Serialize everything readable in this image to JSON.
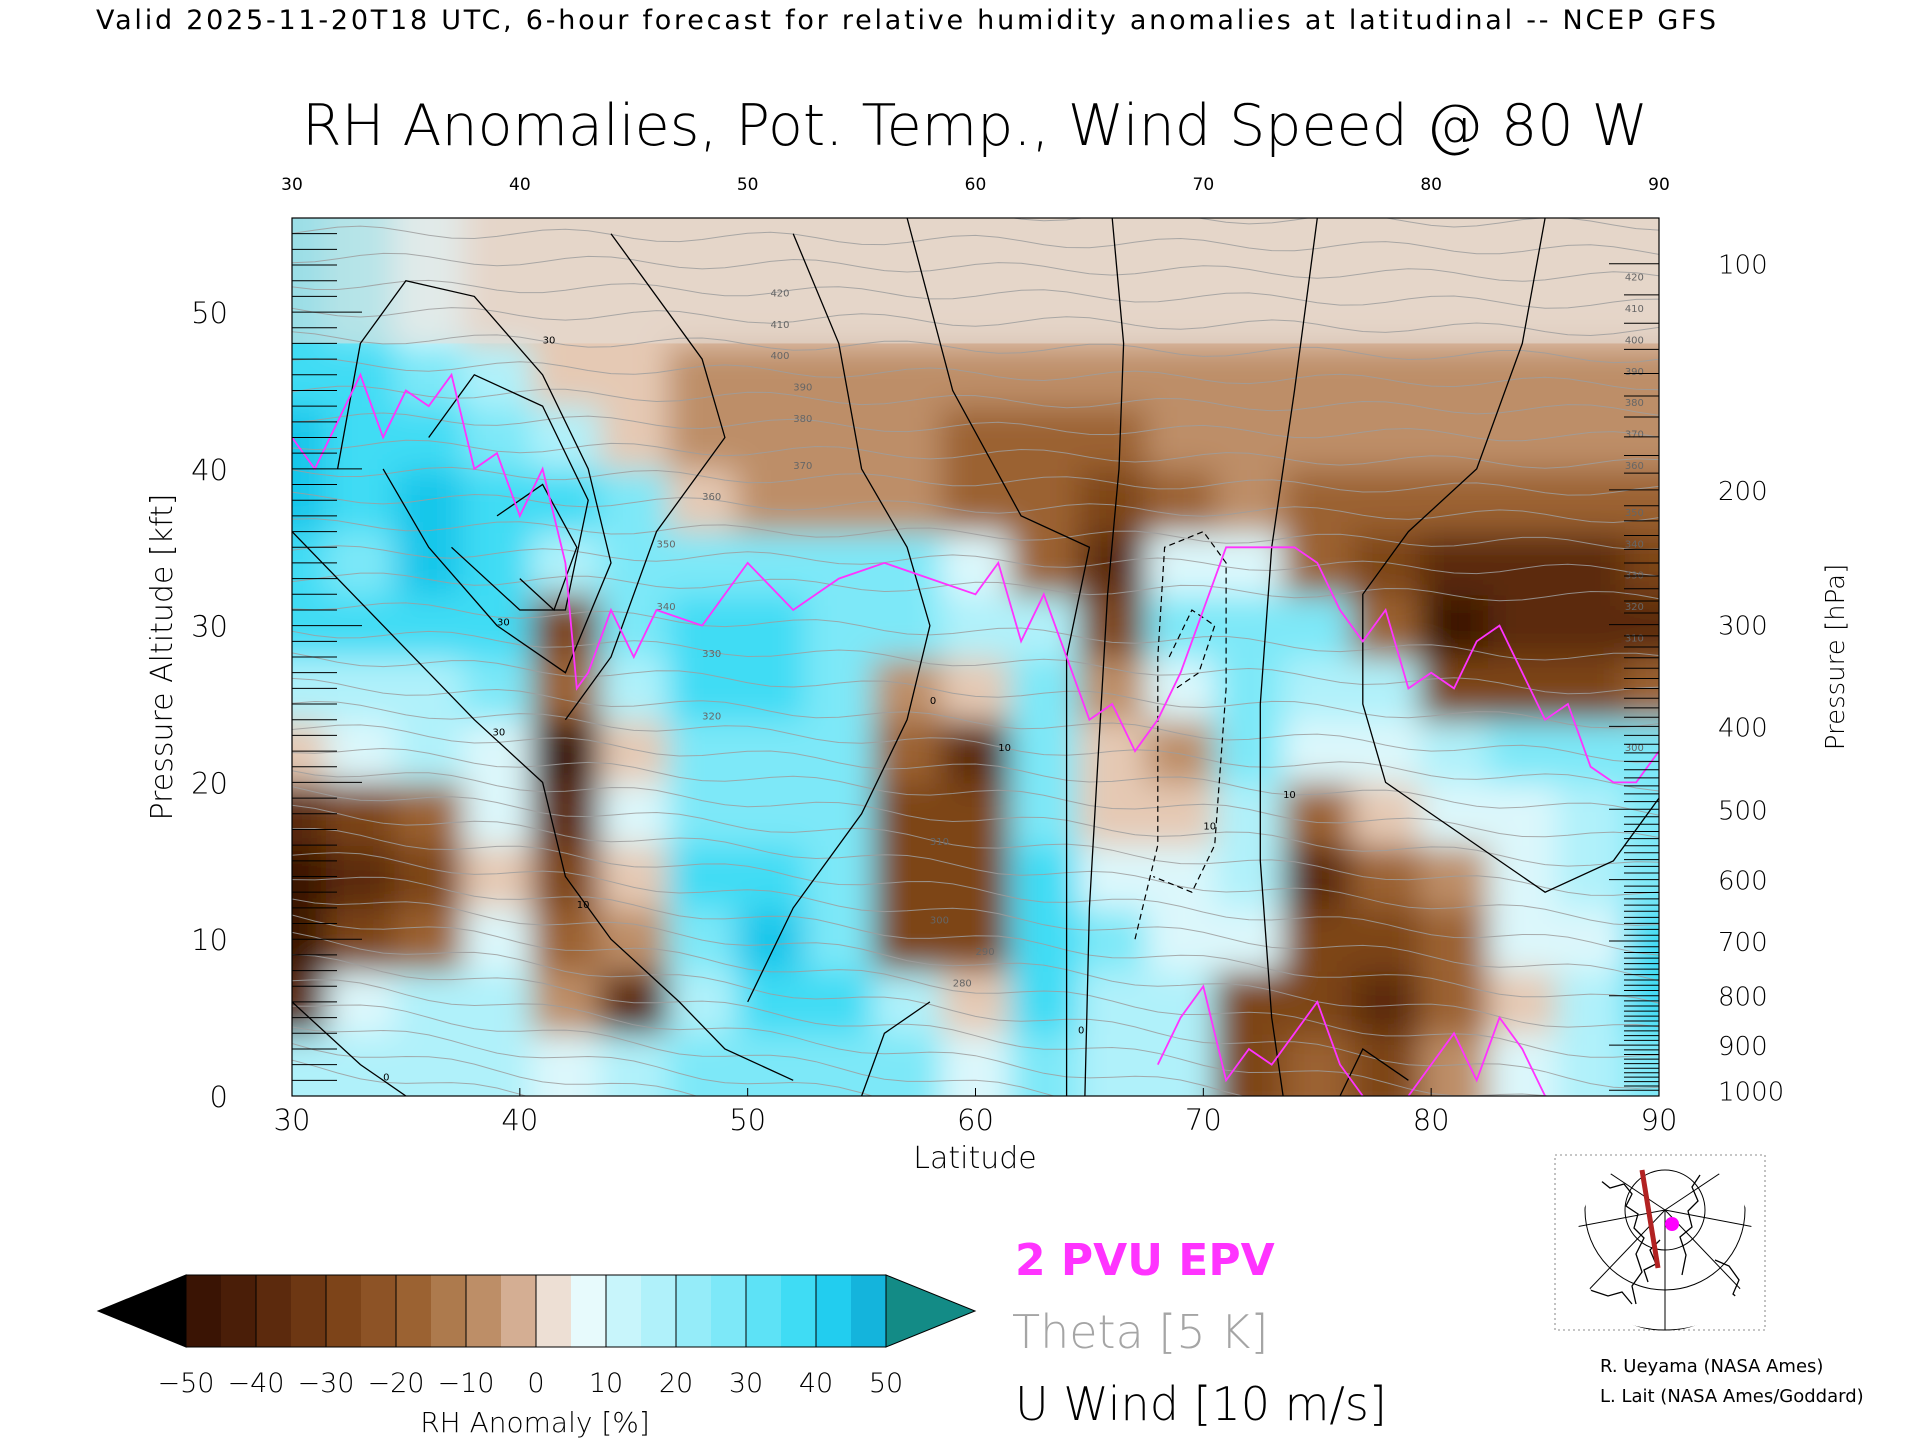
{
  "header": {
    "valid_line": "Valid 2025-11-20T18 UTC, 6-hour forecast for relative humidity anomalies at latitudinal -- NCEP GFS",
    "title": "RH Anomalies, Pot. Temp., Wind Speed @ 80 W"
  },
  "chart_data": {
    "type": "heatmap",
    "title": "RH Anomalies, Pot. Temp., Wind Speed @ 80 W",
    "xlabel": "Latitude",
    "ylabel": "Pressure Altitude [kft]",
    "ylabel_right": "Pressure [hPa]",
    "xlim": [
      30,
      90
    ],
    "ylim": [
      0,
      56
    ],
    "x_ticks": [
      30,
      40,
      50,
      60,
      70,
      80,
      90
    ],
    "y_ticks": [
      0,
      10,
      20,
      30,
      40,
      50
    ],
    "pressure_ticks": [
      {
        "hPa": 100,
        "label": "100"
      },
      {
        "hPa": 200,
        "label": "200"
      },
      {
        "hPa": 300,
        "label": "300"
      },
      {
        "hPa": 400,
        "label": "400"
      },
      {
        "hPa": 500,
        "label": "500"
      },
      {
        "hPa": 600,
        "label": "600"
      },
      {
        "hPa": 700,
        "label": "700"
      },
      {
        "hPa": 800,
        "label": "800"
      },
      {
        "hPa": 900,
        "label": "900"
      },
      {
        "hPa": 1000,
        "label": "1000"
      }
    ],
    "rh_anomaly_field": {
      "lats": [
        30,
        33,
        36,
        39,
        42,
        45,
        48,
        51,
        54,
        57,
        60,
        63,
        66,
        69,
        72,
        75,
        78,
        81,
        84,
        87,
        90
      ],
      "levels_kft": [
        2,
        6,
        10,
        14,
        18,
        22,
        26,
        30,
        34,
        38,
        42,
        46,
        50
      ],
      "values": [
        [
          10,
          15,
          10,
          15,
          5,
          10,
          20,
          25,
          25,
          20,
          5,
          25,
          10,
          10,
          -30,
          -20,
          -25,
          -10,
          0,
          10,
          25
        ],
        [
          -35,
          5,
          10,
          10,
          -10,
          -35,
          15,
          30,
          30,
          15,
          -5,
          30,
          10,
          15,
          -25,
          -25,
          -35,
          -15,
          -5,
          10,
          30
        ],
        [
          -45,
          -30,
          -15,
          0,
          -20,
          -10,
          25,
          40,
          25,
          -25,
          -25,
          35,
          20,
          5,
          5,
          -30,
          -25,
          -15,
          0,
          5,
          30
        ],
        [
          -45,
          -35,
          -25,
          -5,
          -30,
          -5,
          30,
          35,
          25,
          -30,
          -25,
          30,
          0,
          5,
          10,
          -35,
          -15,
          -10,
          5,
          15,
          25
        ],
        [
          -40,
          -30,
          -15,
          0,
          -35,
          0,
          25,
          25,
          25,
          -30,
          -25,
          25,
          -5,
          -5,
          15,
          -20,
          -5,
          0,
          5,
          15,
          20
        ],
        [
          -5,
          5,
          10,
          5,
          -45,
          -5,
          20,
          25,
          25,
          -20,
          -35,
          25,
          -5,
          -10,
          20,
          5,
          5,
          10,
          20,
          20,
          20
        ],
        [
          15,
          15,
          10,
          25,
          -20,
          10,
          30,
          30,
          25,
          -10,
          -5,
          20,
          -10,
          5,
          25,
          15,
          10,
          -25,
          -30,
          -25,
          -15
        ],
        [
          30,
          30,
          30,
          35,
          -25,
          25,
          30,
          30,
          25,
          25,
          10,
          10,
          -30,
          20,
          25,
          20,
          -20,
          -45,
          -40,
          -35,
          -35
        ],
        [
          35,
          25,
          40,
          35,
          10,
          25,
          25,
          25,
          25,
          25,
          5,
          -15,
          -40,
          5,
          5,
          -15,
          -25,
          -40,
          -35,
          -35,
          -30
        ],
        [
          40,
          30,
          45,
          35,
          30,
          20,
          -5,
          -10,
          -10,
          -10,
          -15,
          -20,
          -25,
          -15,
          -10,
          -15,
          -20,
          -20,
          -20,
          -20,
          -20
        ],
        [
          40,
          35,
          35,
          25,
          15,
          -5,
          -10,
          -10,
          -10,
          -10,
          -15,
          -15,
          -15,
          -10,
          -10,
          -10,
          -10,
          -10,
          -10,
          -10,
          -10
        ],
        [
          35,
          35,
          20,
          10,
          -5,
          -5,
          -10,
          -10,
          -10,
          -10,
          -10,
          -10,
          -10,
          -10,
          -10,
          -10,
          -10,
          -10,
          -10,
          -10,
          -10
        ],
        [
          30,
          20,
          5,
          -5,
          -5,
          -5,
          -5,
          -5,
          -5,
          -5,
          -5,
          -5,
          -5,
          -5,
          -5,
          -5,
          -5,
          -5,
          -5,
          -5,
          -5
        ]
      ]
    },
    "epv_2pvu_line": {
      "label": "2 PVU EPV",
      "color": "#ff33ff",
      "points": [
        [
          30,
          42
        ],
        [
          31,
          40
        ],
        [
          32,
          43
        ],
        [
          33,
          46
        ],
        [
          34,
          42
        ],
        [
          35,
          45
        ],
        [
          36,
          44
        ],
        [
          37,
          46
        ],
        [
          38,
          40
        ],
        [
          39,
          41
        ],
        [
          40,
          37
        ],
        [
          41,
          40
        ],
        [
          42,
          34
        ],
        [
          42.5,
          26
        ],
        [
          43,
          27
        ],
        [
          44,
          31
        ],
        [
          45,
          28
        ],
        [
          46,
          31
        ],
        [
          48,
          30
        ],
        [
          50,
          34
        ],
        [
          52,
          31
        ],
        [
          54,
          33
        ],
        [
          56,
          34
        ],
        [
          58,
          33
        ],
        [
          60,
          32
        ],
        [
          61,
          34
        ],
        [
          62,
          29
        ],
        [
          63,
          32
        ],
        [
          64,
          28
        ],
        [
          65,
          24
        ],
        [
          66,
          25
        ],
        [
          67,
          22
        ],
        [
          68,
          24
        ],
        [
          69,
          27
        ],
        [
          70,
          31
        ],
        [
          71,
          35
        ],
        [
          72,
          35
        ],
        [
          73,
          35
        ],
        [
          74,
          35
        ],
        [
          75,
          34
        ],
        [
          76,
          31
        ],
        [
          77,
          29
        ],
        [
          78,
          31
        ],
        [
          79,
          26
        ],
        [
          80,
          27
        ],
        [
          81,
          26
        ],
        [
          82,
          29
        ],
        [
          83,
          30
        ],
        [
          84,
          27
        ],
        [
          85,
          24
        ],
        [
          86,
          25
        ],
        [
          87,
          21
        ],
        [
          88,
          20
        ],
        [
          89,
          20
        ],
        [
          90,
          22
        ]
      ],
      "surface_segments": [
        [
          [
            68,
            2
          ],
          [
            69,
            5
          ],
          [
            70,
            7
          ],
          [
            71,
            1
          ],
          [
            72,
            3
          ],
          [
            73,
            2
          ],
          [
            74,
            4
          ],
          [
            75,
            6
          ],
          [
            76,
            2
          ],
          [
            77,
            0
          ]
        ],
        [
          [
            79,
            0
          ],
          [
            80,
            2
          ],
          [
            81,
            4
          ],
          [
            82,
            1
          ],
          [
            83,
            5
          ],
          [
            84,
            3
          ],
          [
            85,
            0
          ]
        ]
      ]
    },
    "theta_contours": {
      "label": "Theta [5 K]",
      "color": "#9e9e9e",
      "labeled_levels": [
        "280",
        "290",
        "300",
        "310",
        "320",
        "330",
        "340",
        "350",
        "360",
        "370",
        "380",
        "390",
        "400",
        "410",
        "420"
      ]
    },
    "u_wind_contours": {
      "label": "U Wind [10 m/s]",
      "color": "#000000",
      "labeled_levels": [
        "0",
        "10",
        "30"
      ]
    },
    "colorbar": {
      "label": "RH Anomaly [%]",
      "ticks": [
        "-50",
        "-40",
        "-30",
        "-20",
        "-10",
        "0",
        "10",
        "20",
        "30",
        "40",
        "50"
      ],
      "colors": [
        "#3a1404",
        "#5c2a0d",
        "#7d4419",
        "#9b6232",
        "#bd8e67",
        "#e5c9b4",
        "#dcf7fb",
        "#b0f1fa",
        "#7de8f8",
        "#3fdcf4",
        "#18c6ea",
        "#0fa3c6"
      ],
      "under_color": "#000000",
      "over_color": "#138b86"
    }
  },
  "legend": {
    "epv": "2 PVU EPV",
    "theta": "Theta [5 K]",
    "uwind": "U Wind [10 m/s]",
    "epv_color": "#ff33ff",
    "theta_color": "#a5a5a5",
    "uwind_color": "#000000"
  },
  "credits": {
    "line1": "R. Ueyama (NASA Ames)",
    "line2": "L. Lait (NASA Ames/Goddard)"
  },
  "inset_map": {
    "section_color": "#b22222",
    "marker_color": "#ff00ff"
  }
}
